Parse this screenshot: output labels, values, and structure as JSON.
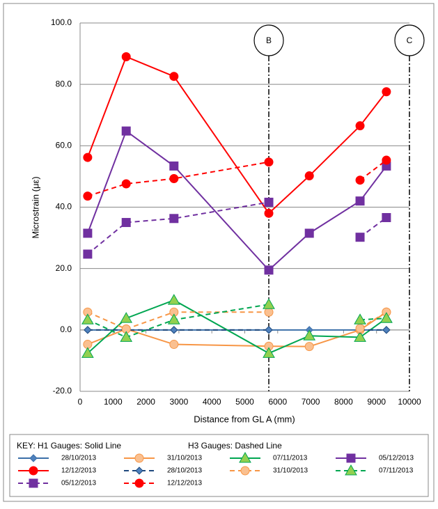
{
  "chart_data": {
    "type": "line",
    "x_label": "Distance from GL A (mm)",
    "y_label": "Microstrain (με)",
    "x": [
      230,
      1400,
      2850,
      5730,
      6960,
      8500,
      9300
    ],
    "xlim": [
      0,
      10000
    ],
    "xticks": [
      0,
      1000,
      2000,
      3000,
      4000,
      5000,
      6000,
      7000,
      8000,
      9000,
      10000
    ],
    "ylim": [
      -20,
      100
    ],
    "yticks": [
      {
        "value": -20,
        "label": "-20.0"
      },
      {
        "value": 0,
        "label": "0.0"
      },
      {
        "value": 20,
        "label": "20.0"
      },
      {
        "value": 40,
        "label": "40.0"
      },
      {
        "value": 60,
        "label": "60.0"
      },
      {
        "value": 80,
        "label": "80.0"
      },
      {
        "value": 100,
        "label": "100.0"
      }
    ],
    "grid": true,
    "annotations": [
      {
        "label": "B",
        "x": 5730
      },
      {
        "label": "C",
        "x": 10000
      }
    ],
    "legend_key": "KEY: H1 Gauges: Solid Line",
    "legend_key2": "H3 Gauges: Dashed Line",
    "series": [
      {
        "name": "28/10/2013",
        "color": "#3b6fa8",
        "marker_fill": "#4f81bd",
        "marker": "diamond",
        "line_style": "solid",
        "values": [
          0,
          0,
          0,
          0,
          0,
          0,
          0
        ]
      },
      {
        "name": "31/10/2013",
        "color": "#f79646",
        "marker_fill": "#fac090",
        "marker": "circle",
        "line_style": "solid",
        "values": [
          -4.7,
          0.3,
          -4.7,
          -5.3,
          -5.4,
          0,
          5.8
        ]
      },
      {
        "name": "07/11/2013",
        "color": "#00a651",
        "marker_fill": "#92d050",
        "marker": "triangle",
        "line_style": "solid",
        "values": [
          -7.6,
          3.8,
          9.7,
          -7.6,
          -1.9,
          -2.4,
          3.8
        ]
      },
      {
        "name": "05/12/2013",
        "color": "#7030a0",
        "marker_fill": "#7030a0",
        "marker": "square",
        "line_style": "solid",
        "values": [
          31.5,
          64.8,
          53.4,
          19.5,
          31.5,
          42,
          53.4
        ]
      },
      {
        "name": "12/12/2013",
        "color": "#ff0000",
        "marker_fill": "#ff0000",
        "marker": "circle",
        "line_style": "solid",
        "values": [
          56.2,
          89,
          82.6,
          38,
          50.2,
          66.5,
          77.6
        ]
      },
      {
        "name": "28/10/2013",
        "color": "#1f497d",
        "marker_fill": "#4f81bd",
        "marker": "diamond",
        "line_style": "dashed",
        "values": [
          0,
          0,
          0,
          0,
          null,
          0,
          0
        ]
      },
      {
        "name": "31/10/2013",
        "color": "#f79646",
        "marker_fill": "#fac090",
        "marker": "circle",
        "line_style": "dashed",
        "values": [
          5.8,
          0.3,
          5.8,
          5.8,
          null,
          0.5,
          5.8
        ]
      },
      {
        "name": "07/11/2013",
        "color": "#00a651",
        "marker_fill": "#92d050",
        "marker": "triangle",
        "line_style": "dashed",
        "values": [
          3.3,
          -2.4,
          3.3,
          8.3,
          null,
          3.3,
          3.8
        ]
      },
      {
        "name": "05/12/2013",
        "color": "#7030a0",
        "marker_fill": "#7030a0",
        "marker": "square",
        "line_style": "dashed",
        "values": [
          24.7,
          35,
          36.3,
          41.6,
          null,
          30.2,
          36.6
        ]
      },
      {
        "name": "12/12/2013",
        "color": "#ff0000",
        "marker_fill": "#ff0000",
        "marker": "circle",
        "line_style": "dashed",
        "values": [
          43.6,
          47.6,
          49.3,
          54.7,
          null,
          48.8,
          55.3
        ]
      }
    ]
  }
}
